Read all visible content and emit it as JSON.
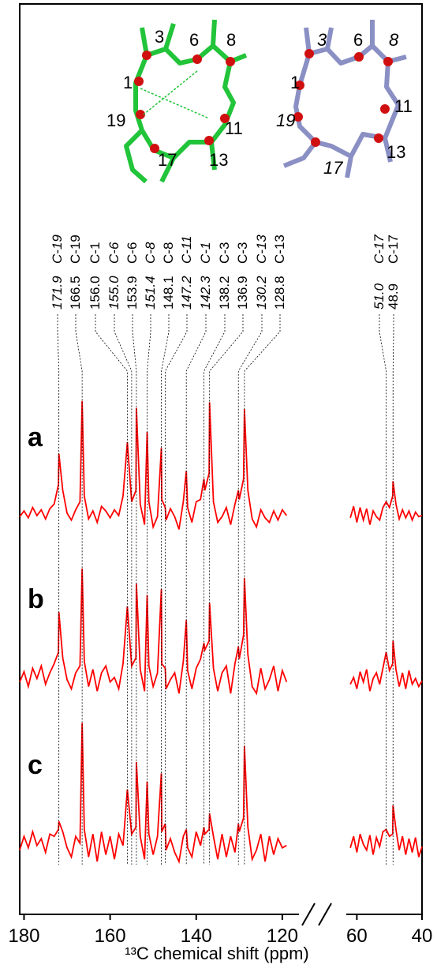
{
  "chart_data": [
    {
      "type": "line",
      "xlabel": "¹³C chemical shift (ppm)",
      "xlim": [
        181,
        116.5
      ],
      "xticks": [
        180,
        160,
        140,
        120
      ],
      "x": [
        181,
        180,
        179,
        178,
        177,
        176,
        175,
        174,
        173,
        172,
        171.9,
        171,
        170,
        169,
        168,
        167,
        166.5,
        166,
        165,
        164,
        163,
        162,
        161,
        160,
        159,
        158,
        157,
        156,
        155,
        154,
        153.9,
        153,
        152,
        151.4,
        151,
        150,
        149,
        148.1,
        148,
        147.2,
        147,
        146,
        145,
        144,
        143,
        142.3,
        142,
        141,
        140,
        139,
        138.2,
        138,
        137,
        136.9,
        136,
        135,
        134,
        133,
        132,
        131,
        130.2,
        130,
        129,
        128.8,
        128,
        127,
        126,
        125,
        124,
        123,
        122,
        121,
        120,
        119
      ],
      "series": [
        {
          "name": "a",
          "color": "#ff0000",
          "values": [
            -3,
            2,
            -4,
            5,
            -2,
            3,
            -5,
            4,
            8,
            25,
            52,
            20,
            0,
            -6,
            3,
            10,
            98,
            15,
            -5,
            2,
            -8,
            6,
            2,
            -4,
            3,
            -2,
            15,
            62,
            10,
            20,
            92,
            8,
            -10,
            71,
            10,
            -12,
            -3,
            57,
            12,
            5,
            -6,
            4,
            -3,
            -14,
            10,
            37,
            5,
            -8,
            10,
            12,
            30,
            20,
            35,
            97,
            10,
            -8,
            -3,
            5,
            -10,
            8,
            20,
            12,
            30,
            91,
            20,
            -5,
            -12,
            3,
            -4,
            -8,
            2,
            -6,
            3,
            -2
          ]
        },
        {
          "name": "b",
          "color": "#ff0000",
          "values": [
            -6,
            3,
            -10,
            6,
            -3,
            8,
            -8,
            2,
            10,
            20,
            55,
            15,
            -4,
            -12,
            2,
            8,
            93,
            12,
            -10,
            5,
            -14,
            2,
            8,
            -6,
            -2,
            -12,
            10,
            60,
            8,
            15,
            80,
            5,
            -14,
            70,
            8,
            -10,
            2,
            75,
            10,
            6,
            -12,
            -4,
            2,
            -16,
            12,
            48,
            4,
            -12,
            6,
            14,
            28,
            22,
            30,
            63,
            6,
            -14,
            2,
            8,
            -16,
            10,
            25,
            14,
            35,
            85,
            18,
            -10,
            -16,
            6,
            -12,
            -4,
            8,
            -14,
            4,
            -6
          ]
        },
        {
          "name": "c",
          "color": "#ff0000",
          "values": [
            -8,
            4,
            -6,
            8,
            -4,
            2,
            -10,
            6,
            4,
            10,
            17,
            8,
            -6,
            -14,
            4,
            -2,
            103,
            10,
            -14,
            6,
            -18,
            8,
            -12,
            4,
            -16,
            6,
            -4,
            45,
            6,
            12,
            69,
            4,
            -16,
            52,
            6,
            -12,
            4,
            59,
            8,
            15,
            -8,
            2,
            -10,
            -18,
            4,
            10,
            -6,
            -14,
            8,
            -4,
            12,
            6,
            10,
            24,
            4,
            -16,
            6,
            -14,
            4,
            -10,
            15,
            8,
            20,
            83,
            12,
            -16,
            -8,
            6,
            -18,
            4,
            -12,
            2,
            -6,
            -4
          ]
        }
      ]
    },
    {
      "type": "line",
      "xlim": [
        63,
        40
      ],
      "xticks": [
        60,
        40
      ],
      "x": [
        62,
        61,
        60,
        59,
        58,
        57,
        56,
        55,
        54,
        53,
        52,
        51,
        50,
        49,
        48.9,
        48,
        47,
        46,
        45,
        44,
        43,
        42,
        41,
        40
      ],
      "series": [
        {
          "color": "#ff0000",
          "values": [
            -4,
            6,
            -8,
            5,
            -6,
            4,
            -10,
            2,
            -3,
            -6,
            5,
            10,
            5,
            15,
            28,
            8,
            -5,
            3,
            -4,
            2,
            -6,
            1,
            -3,
            -2
          ]
        },
        {
          "color": "#ff0000",
          "values": [
            -8,
            -2,
            -12,
            3,
            -6,
            5,
            -14,
            -3,
            2,
            -8,
            6,
            20,
            4,
            10,
            30,
            5,
            -10,
            2,
            -12,
            4,
            -8,
            -3,
            -10,
            -5
          ]
        },
        {
          "color": "#ff0000",
          "values": [
            -6,
            4,
            -10,
            6,
            -3,
            -8,
            5,
            -12,
            3,
            -5,
            8,
            10,
            4,
            6,
            31,
            10,
            -8,
            4,
            -12,
            2,
            -10,
            3,
            -14,
            -5
          ]
        }
      ]
    }
  ],
  "peaks": [
    {
      "shift": {
        "value": 171.9,
        "label": "171.9"
      },
      "atom": "C-19",
      "italic": true
    },
    {
      "shift": {
        "value": 166.5,
        "label": "166.5"
      },
      "atom": "C-19",
      "italic": false
    },
    {
      "shift": {
        "value": 156.0,
        "label": "156.0"
      },
      "atom": "C-1",
      "italic": false
    },
    {
      "shift": {
        "value": 155.0,
        "label": "155.0"
      },
      "atom": "C-6",
      "italic": true
    },
    {
      "shift": {
        "value": 153.9,
        "label": "153.9"
      },
      "atom": "C-6",
      "italic": false
    },
    {
      "shift": {
        "value": 151.4,
        "label": "151.4"
      },
      "atom": "C-8",
      "italic": true
    },
    {
      "shift": {
        "value": 148.1,
        "label": "148.1"
      },
      "atom": "C-8",
      "italic": false
    },
    {
      "shift": {
        "value": 147.2,
        "label": "147.2"
      },
      "atom": "C-11",
      "italic": true
    },
    {
      "shift": {
        "value": 142.3,
        "label": "142.3"
      },
      "atom": "C-1",
      "italic": true
    },
    {
      "shift": {
        "value": 138.2,
        "label": "138.2"
      },
      "atom": "C-3",
      "italic": false
    },
    {
      "shift": {
        "value": 136.9,
        "label": "136.9"
      },
      "atom": "C-3",
      "italic": false
    },
    {
      "shift": {
        "value": 130.2,
        "label": "130.2"
      },
      "atom": "C-13",
      "italic": true
    },
    {
      "shift": {
        "value": 128.8,
        "label": "128.8"
      },
      "atom": "C-13",
      "italic": false
    },
    {
      "shift": {
        "value": 51.0,
        "label": "51.0"
      },
      "atom": "C-17",
      "italic": true
    },
    {
      "shift": {
        "value": 48.9,
        "label": "48.9"
      },
      "atom": "C-17",
      "italic": false
    }
  ],
  "structures": [
    {
      "color": "#22c43a",
      "labels": [
        "3",
        "6",
        "8",
        "1",
        "19",
        "11",
        "17",
        "13"
      ]
    },
    {
      "color": "#8a8fc4",
      "labels": [
        "3",
        "6",
        "8",
        "1",
        "19",
        "11",
        "17",
        "13"
      ]
    }
  ]
}
